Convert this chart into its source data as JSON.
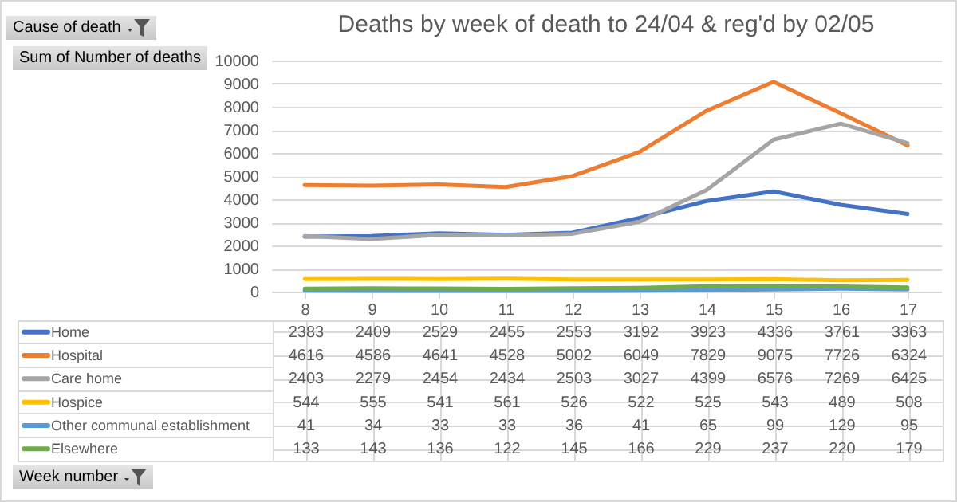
{
  "chart_data": {
    "type": "line",
    "title": "Deaths by week of death to 24/04 & reg'd by 02/05",
    "categories": [
      "8",
      "9",
      "10",
      "11",
      "12",
      "13",
      "14",
      "15",
      "16",
      "17"
    ],
    "series": [
      {
        "name": "Home",
        "color": "#4472c4",
        "values": [
          2383,
          2409,
          2529,
          2455,
          2553,
          3192,
          3923,
          4336,
          3761,
          3363
        ]
      },
      {
        "name": "Hospital",
        "color": "#ed7d31",
        "values": [
          4616,
          4586,
          4641,
          4528,
          5002,
          6049,
          7829,
          9075,
          7726,
          6324
        ]
      },
      {
        "name": "Care home",
        "color": "#a5a5a5",
        "values": [
          2403,
          2279,
          2454,
          2434,
          2503,
          3027,
          4399,
          6576,
          7269,
          6425
        ]
      },
      {
        "name": "Hospice",
        "color": "#ffc000",
        "values": [
          544,
          555,
          541,
          561,
          526,
          522,
          525,
          543,
          489,
          508
        ]
      },
      {
        "name": "Other communal establishment",
        "color": "#5b9bd5",
        "values": [
          41,
          34,
          33,
          33,
          36,
          41,
          65,
          99,
          129,
          95
        ]
      },
      {
        "name": "Elsewhere",
        "color": "#70ad47",
        "values": [
          133,
          143,
          136,
          122,
          145,
          166,
          229,
          237,
          220,
          179
        ]
      }
    ],
    "ylim": [
      0,
      10000
    ],
    "yticks": [
      0,
      1000,
      2000,
      3000,
      4000,
      5000,
      6000,
      7000,
      8000,
      9000,
      10000
    ],
    "grid": "y",
    "legend": "bottom",
    "data_labels": true,
    "annotations": [
      "Cause of death",
      "Sum of Number of deaths",
      "Week number"
    ]
  }
}
